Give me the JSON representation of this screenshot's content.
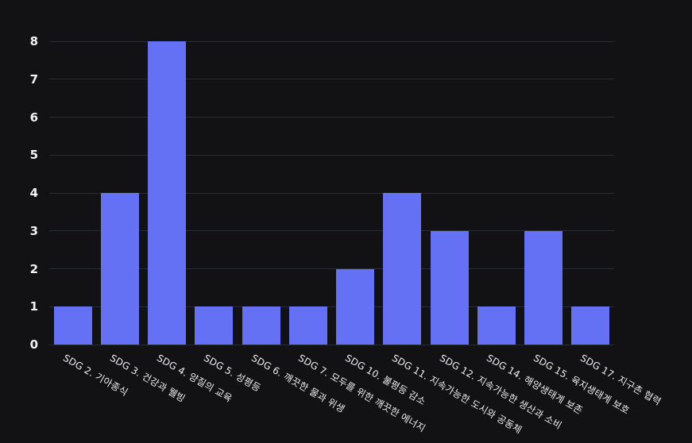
{
  "chart_data": {
    "type": "bar",
    "title": "",
    "xlabel": "",
    "ylabel": "",
    "categories": [
      "SDG 2. 기아종식",
      "SDG 3. 건강과 웰빙",
      "SDG 4. 양질의 교육",
      "SDG 5. 성평등",
      "SDG 6. 깨끗한 물과 위생",
      "SDG 7. 모두를 위한 깨끗한 에너지",
      "SDG 10. 불평등 감소",
      "SDG 11. 지속가능한 도시와 공동체",
      "SDG 12. 지속가능한 생산과 소비",
      "SDG 14. 해양생태계 보존",
      "SDG 15. 육지생태계 보호",
      "SDG 17. 지구촌 협력"
    ],
    "values": [
      1,
      4,
      8,
      1,
      1,
      1,
      2,
      4,
      3,
      1,
      3,
      1
    ],
    "ylim": [
      0,
      8
    ],
    "yticks": [
      0,
      1,
      2,
      3,
      4,
      5,
      6,
      7,
      8
    ],
    "grid": true,
    "legend": "none",
    "x_label_rotation_deg": 30,
    "colors": {
      "background": "#121214",
      "bar": "#6471f4",
      "gridline": "#272c37",
      "y_tick_label": "#f2f2f2",
      "x_tick_label": "#ececec"
    }
  }
}
